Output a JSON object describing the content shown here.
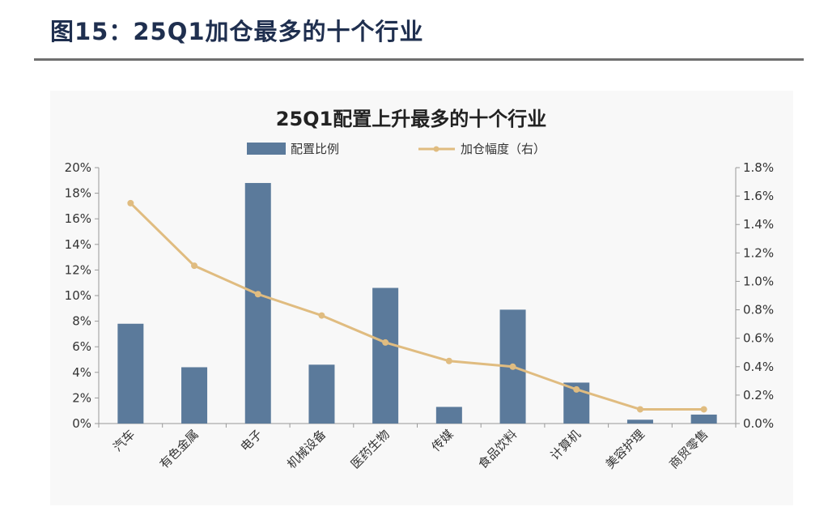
{
  "figure": {
    "title": "图15：25Q1加仓最多的十个行业"
  },
  "colors": {
    "bar": "#5b7a9b",
    "line": "#e0bc80",
    "axis": "#999999",
    "grid": "none"
  },
  "chart_data": {
    "type": "bar+line",
    "title": "25Q1配置上升最多的十个行业",
    "legend_position": "top",
    "grid": false,
    "categories": [
      "汽车",
      "有色金属",
      "电子",
      "机械设备",
      "医药生物",
      "传媒",
      "食品饮料",
      "计算机",
      "美容护理",
      "商贸零售"
    ],
    "series": [
      {
        "name": "配置比例",
        "type": "bar",
        "axis": "left",
        "values": [
          7.8,
          4.4,
          18.8,
          4.6,
          10.6,
          1.3,
          8.9,
          3.2,
          0.3,
          0.7
        ]
      },
      {
        "name": "加仓幅度（右）",
        "type": "line",
        "axis": "right",
        "values": [
          1.55,
          1.11,
          0.91,
          0.76,
          0.57,
          0.44,
          0.4,
          0.24,
          0.1,
          0.1
        ]
      }
    ],
    "y_left": {
      "lim": [
        0,
        20
      ],
      "ticks": [
        "0%",
        "2%",
        "4%",
        "6%",
        "8%",
        "10%",
        "12%",
        "14%",
        "16%",
        "18%",
        "20%"
      ]
    },
    "y_right": {
      "lim": [
        0,
        1.8
      ],
      "ticks": [
        "0.0%",
        "0.2%",
        "0.4%",
        "0.6%",
        "0.8%",
        "1.0%",
        "1.2%",
        "1.4%",
        "1.6%",
        "1.8%"
      ]
    }
  }
}
